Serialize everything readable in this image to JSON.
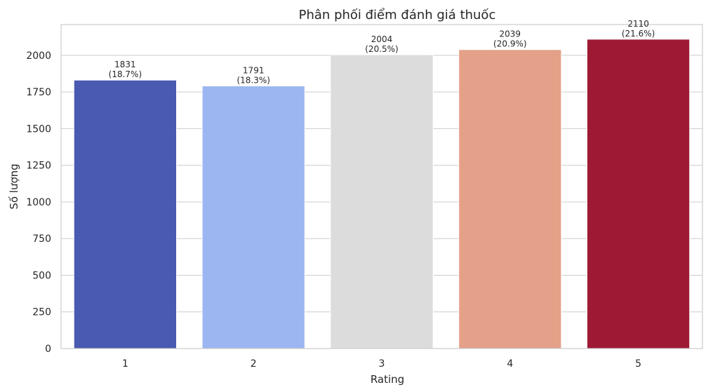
{
  "chart_data": {
    "type": "bar",
    "title": "Phân phối điểm đánh giá thuốc",
    "xlabel": "Rating",
    "ylabel": "Số lượng",
    "categories": [
      "1",
      "2",
      "3",
      "4",
      "5"
    ],
    "values": [
      1831,
      1791,
      2004,
      2039,
      2110
    ],
    "percent_labels": [
      "(18.7%)",
      "(18.3%)",
      "(20.5%)",
      "(20.9%)",
      "(21.6%)"
    ],
    "colors": [
      "#4a59b1",
      "#9bb6f0",
      "#dcdcdc",
      "#e4a089",
      "#9e1a34"
    ],
    "ylim": [
      0,
      2210
    ],
    "yticks": [
      0,
      250,
      500,
      750,
      1000,
      1250,
      1500,
      1750,
      2000
    ],
    "grid": "y",
    "legend": "none"
  }
}
